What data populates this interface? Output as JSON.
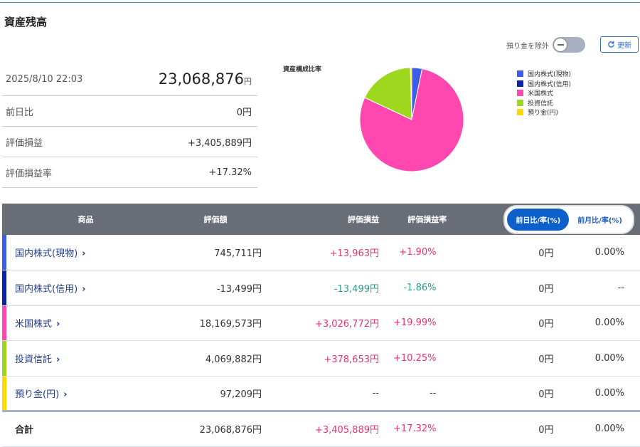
{
  "title": "資産残高",
  "summary": {
    "datetime": "2025/8/10 22:03",
    "total": "23,068,876",
    "yen": "円",
    "rows": [
      {
        "label": "前日比",
        "value": "0円",
        "cls": ""
      },
      {
        "label": "評価損益",
        "value": "+3,405,889円",
        "cls": "pos"
      },
      {
        "label": "評価損益率",
        "value": "+17.32%",
        "cls": "pos"
      }
    ]
  },
  "controls": {
    "exclude_cash_label": "預り金を除外",
    "refresh_label": "更新"
  },
  "chart_data": {
    "type": "pie",
    "title": "資産構成比率",
    "slices": [
      {
        "label": "国内株式(現物)",
        "value": 745711,
        "color": "#3b5de7"
      },
      {
        "label": "国内株式(信用)",
        "value": 0,
        "color": "#0a23a8"
      },
      {
        "label": "米国株式",
        "value": 18169573,
        "color": "#ff47b0"
      },
      {
        "label": "投資信託",
        "value": 4069882,
        "color": "#9ed81e"
      },
      {
        "label": "預り金(円)",
        "value": 97209,
        "color": "#ffd800"
      }
    ],
    "legend_position": "right"
  },
  "table": {
    "headers": [
      "商品",
      "評価額",
      "評価損益",
      "評価損益率"
    ],
    "tabs": [
      "前日比/率(%)",
      "前月比/率(%)"
    ],
    "rows": [
      {
        "name": "国内株式(現物)",
        "color": "#3b5de7",
        "value": "745,711円",
        "pl": "+13,963円",
        "rate": "+1.90%",
        "cls": "pos",
        "day": "0円",
        "dayrate": "0.00%"
      },
      {
        "name": "国内株式(信用)",
        "color": "#0a23a8",
        "value": "-13,499円",
        "pl": "-13,499円",
        "rate": "-1.86%",
        "cls": "neg",
        "day": "0円",
        "dayrate": "--"
      },
      {
        "name": "米国株式",
        "color": "#ff47b0",
        "value": "18,169,573円",
        "pl": "+3,026,772円",
        "rate": "+19.99%",
        "cls": "pos",
        "day": "0円",
        "dayrate": "0.00%"
      },
      {
        "name": "投資信託",
        "color": "#9ed81e",
        "value": "4,069,882円",
        "pl": "+378,653円",
        "rate": "+10.25%",
        "cls": "pos",
        "day": "0円",
        "dayrate": "0.00%"
      },
      {
        "name": "預り金(円)",
        "color": "#ffd800",
        "value": "97,209円",
        "pl": "--",
        "rate": "--",
        "cls": "",
        "day": "0円",
        "dayrate": "0.00%"
      }
    ],
    "total": {
      "name": "合計",
      "value": "23,068,876円",
      "pl": "+3,405,889円",
      "rate": "+17.32%",
      "day": "0円",
      "dayrate": "0.00%"
    }
  }
}
